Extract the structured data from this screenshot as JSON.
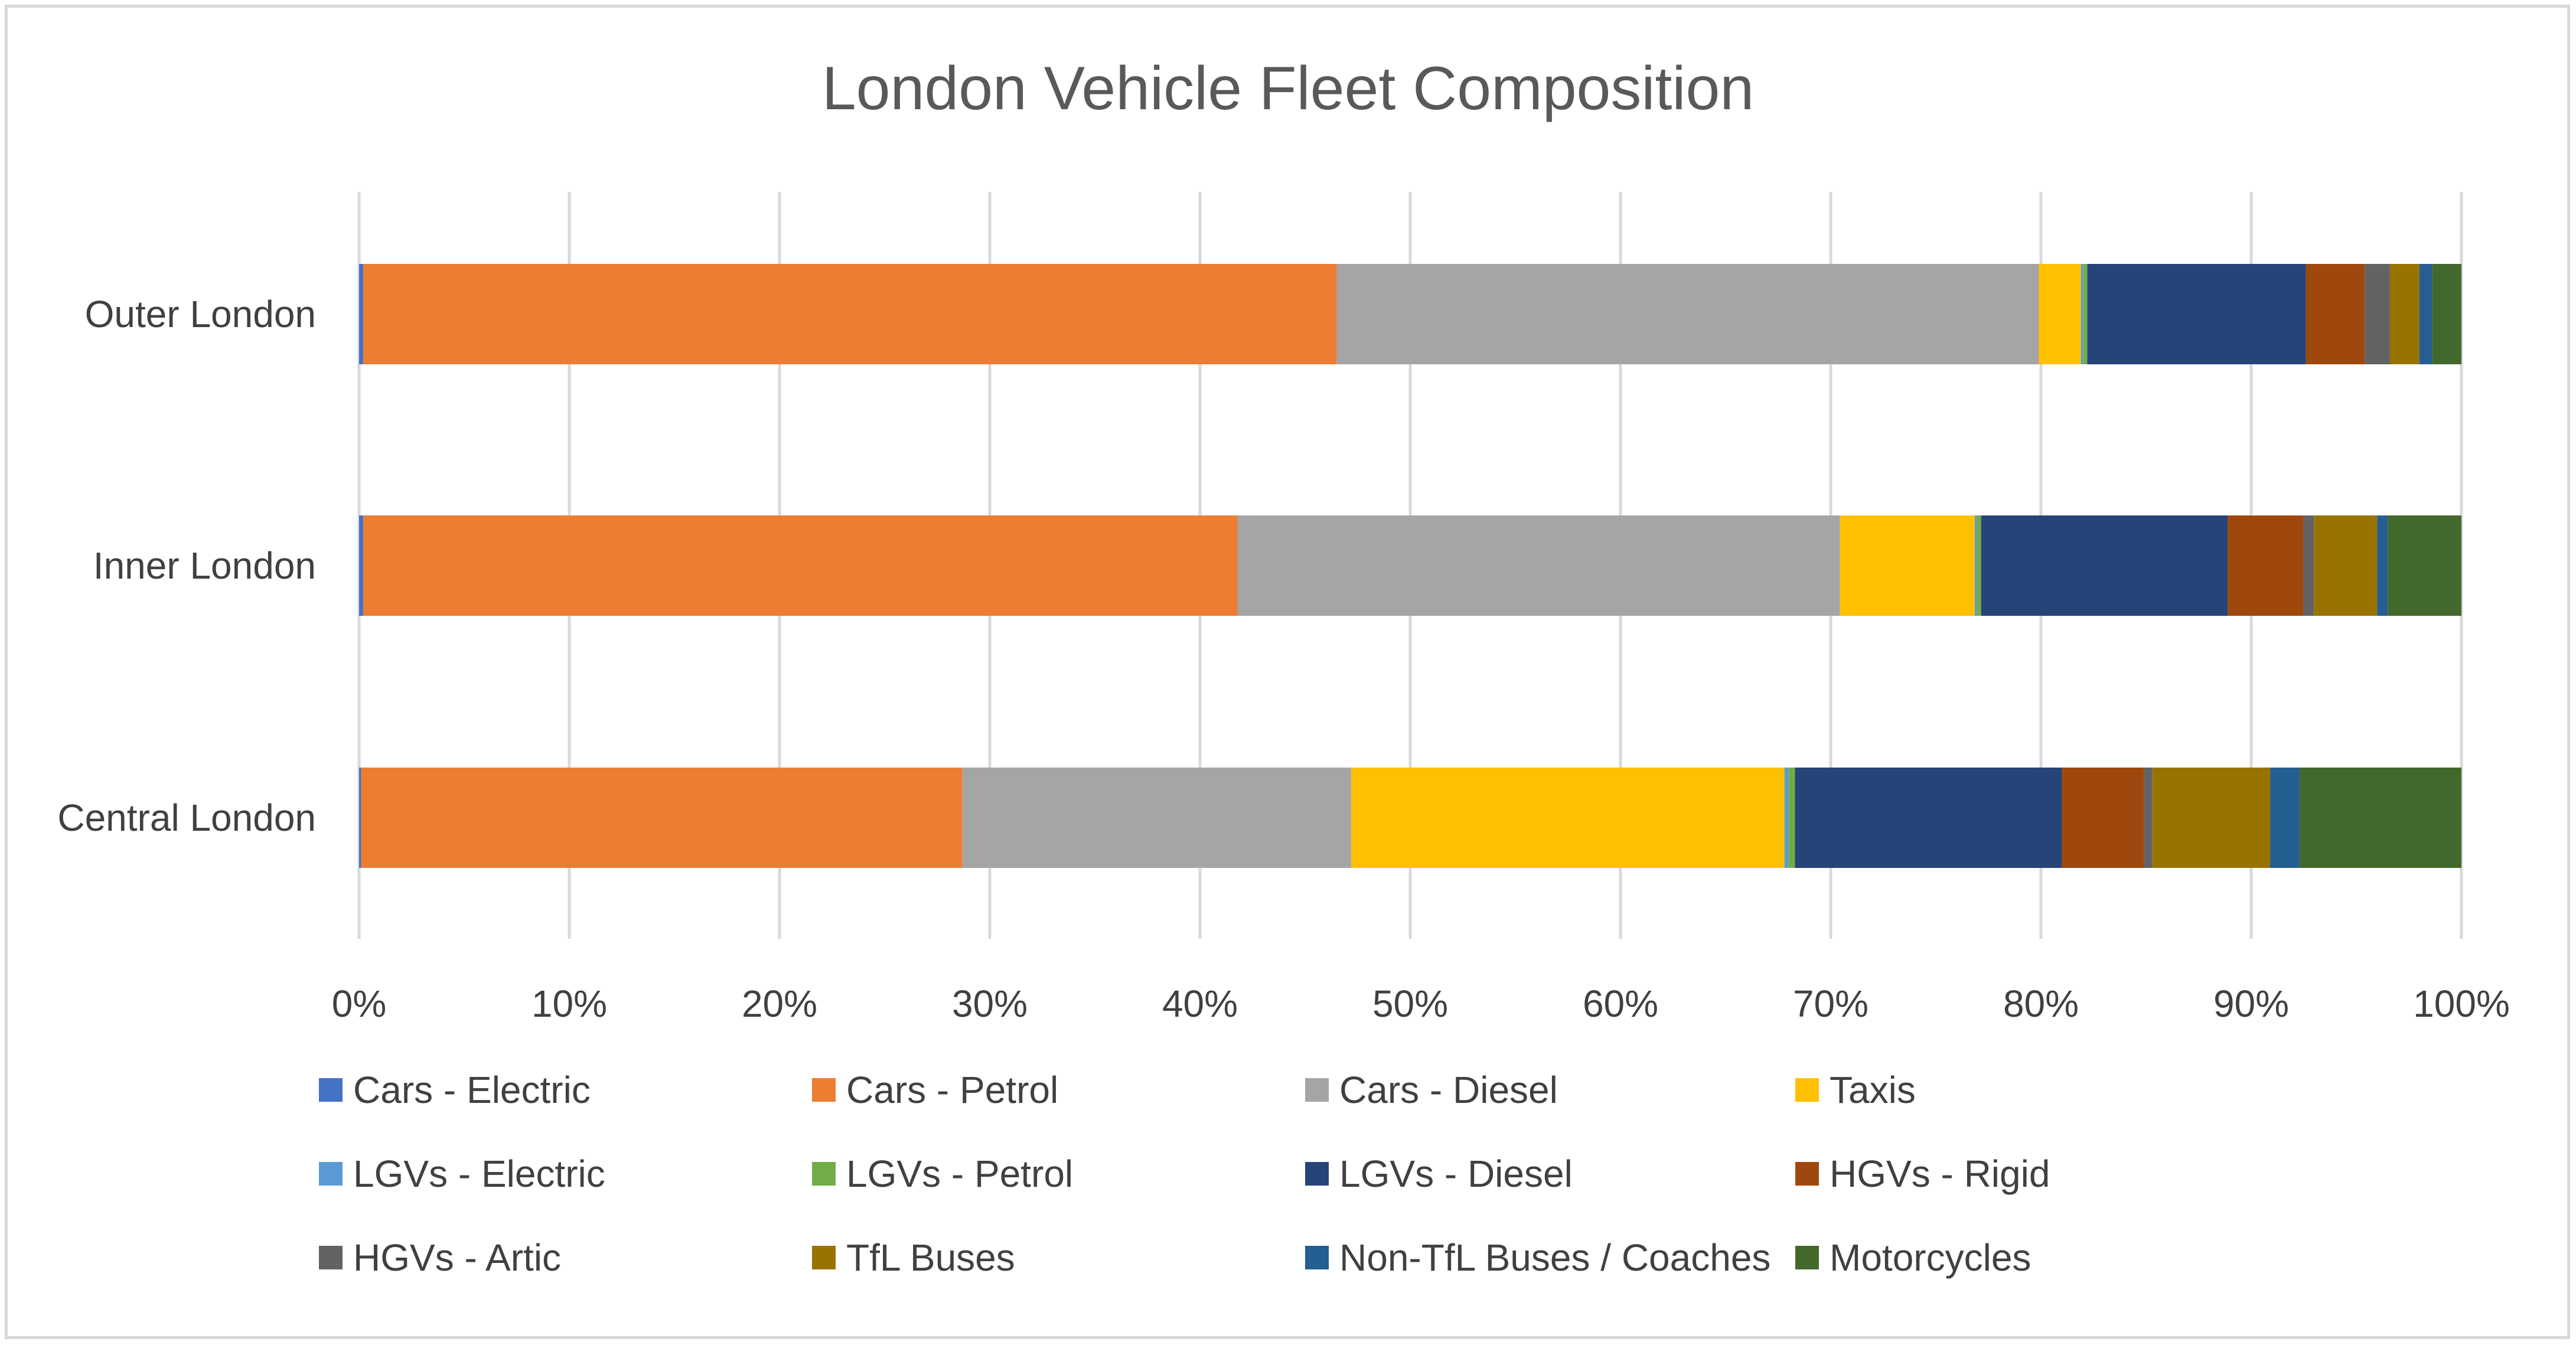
{
  "chart_data": {
    "type": "bar",
    "orientation": "horizontal",
    "stacked": "100%",
    "title": "London Vehicle Fleet Composition",
    "xlabel": "",
    "ylabel": "",
    "xlim": [
      0,
      100
    ],
    "x_ticks": [
      "0%",
      "10%",
      "20%",
      "30%",
      "40%",
      "50%",
      "60%",
      "70%",
      "80%",
      "90%",
      "100%"
    ],
    "grid": "vertical",
    "legend_position": "bottom",
    "categories": [
      "Outer London",
      "Inner London",
      "Central London"
    ],
    "series": [
      {
        "name": "Cars - Electric",
        "color": "#4472c4",
        "values": [
          0.2,
          0.2,
          0.1
        ]
      },
      {
        "name": "Cars - Petrol",
        "color": "#ed7d31",
        "values": [
          46.3,
          41.5,
          28.6
        ]
      },
      {
        "name": "Cars - Diesel",
        "color": "#a5a5a5",
        "values": [
          33.4,
          28.6,
          18.5
        ]
      },
      {
        "name": "Taxis",
        "color": "#ffc000",
        "values": [
          2.0,
          6.4,
          20.6
        ]
      },
      {
        "name": "LGVs - Electric",
        "color": "#5b9bd5",
        "values": [
          0.1,
          0.1,
          0.2
        ]
      },
      {
        "name": "LGVs - Petrol",
        "color": "#70ad47",
        "values": [
          0.2,
          0.2,
          0.3
        ]
      },
      {
        "name": "LGVs - Diesel",
        "color": "#264478",
        "values": [
          10.4,
          11.7,
          12.7
        ]
      },
      {
        "name": "HGVs - Rigid",
        "color": "#9e480e",
        "values": [
          2.8,
          3.6,
          3.9
        ]
      },
      {
        "name": "HGVs - Artic",
        "color": "#636363",
        "values": [
          1.2,
          0.5,
          0.4
        ]
      },
      {
        "name": "TfL Buses",
        "color": "#997300",
        "values": [
          1.4,
          3.0,
          5.6
        ]
      },
      {
        "name": "Non-TfL Buses / Coaches",
        "color": "#255e91",
        "values": [
          0.6,
          0.5,
          1.4
        ]
      },
      {
        "name": "Motorcycles",
        "color": "#43682b",
        "values": [
          1.4,
          3.5,
          7.7
        ]
      }
    ]
  }
}
